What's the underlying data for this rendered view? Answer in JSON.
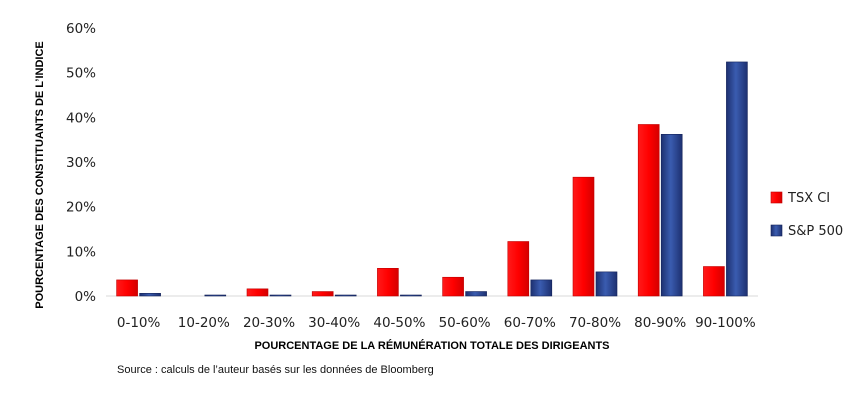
{
  "chart_data": {
    "type": "bar",
    "title": "",
    "xlabel": "POURCENTAGE DE LA RÉMUNÉRATION TOTALE DES DIRIGEANTS",
    "ylabel": "POURCENTAGE DES CONSTITUANTS DE L’INDICE",
    "categories": [
      "0-10%",
      "10-20%",
      "20-30%",
      "30-40%",
      "40-50%",
      "50-60%",
      "60-70%",
      "70-80%",
      "80-90%",
      "90-100%"
    ],
    "series": [
      {
        "name": "TSX CI",
        "color": "#ff0000",
        "values": [
          3.6,
          0,
          1.6,
          1.0,
          6.2,
          4.2,
          12.2,
          26.6,
          38.4,
          6.6
        ]
      },
      {
        "name": "S&P 500",
        "color": "#2f4f9f",
        "values": [
          0.6,
          0.2,
          0.2,
          0.2,
          0.2,
          1.0,
          3.6,
          5.4,
          36.2,
          52.4
        ]
      }
    ],
    "ylim": [
      0,
      60
    ],
    "yticks": [
      0,
      10,
      20,
      30,
      40,
      50,
      60
    ],
    "ytick_labels": [
      "0%",
      "10%",
      "20%",
      "30%",
      "40%",
      "50%",
      "60%"
    ],
    "legend_position": "right",
    "grid": false
  },
  "source_note": "Source : calculs de l’auteur basés sur les données de Bloomberg"
}
